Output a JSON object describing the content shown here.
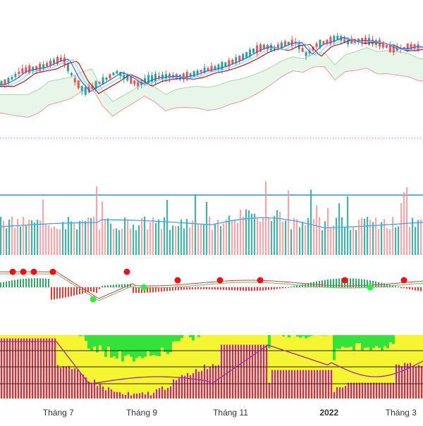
{
  "chart_data": [
    {
      "pane": "price",
      "type": "candlestick",
      "title": "",
      "overlays": [
        "ichimoku-cloud",
        "tenkan-line",
        "kijun-line",
        "moving-average"
      ],
      "candles_sampled": [
        {
          "o": 0.46,
          "c": 0.4,
          "h": 0.38,
          "l": 0.5
        },
        {
          "o": 0.4,
          "c": 0.36,
          "h": 0.34,
          "l": 0.42
        },
        {
          "o": 0.36,
          "c": 0.3,
          "h": 0.28,
          "l": 0.38
        },
        {
          "o": 0.3,
          "c": 0.26,
          "h": 0.24,
          "l": 0.33
        },
        {
          "o": 0.26,
          "c": 0.31,
          "h": 0.23,
          "l": 0.33
        },
        {
          "o": 0.31,
          "c": 0.27,
          "h": 0.25,
          "l": 0.34
        },
        {
          "o": 0.27,
          "c": 0.22,
          "h": 0.18,
          "l": 0.29
        },
        {
          "o": 0.22,
          "c": 0.45,
          "h": 0.2,
          "l": 0.47
        },
        {
          "o": 0.45,
          "c": 0.55,
          "h": 0.43,
          "l": 0.62
        },
        {
          "o": 0.55,
          "c": 0.48,
          "h": 0.44,
          "l": 0.57
        },
        {
          "o": 0.48,
          "c": 0.42,
          "h": 0.4,
          "l": 0.5
        },
        {
          "o": 0.42,
          "c": 0.33,
          "h": 0.28,
          "l": 0.44
        },
        {
          "o": 0.33,
          "c": 0.4,
          "h": 0.3,
          "l": 0.42
        },
        {
          "o": 0.4,
          "c": 0.46,
          "h": 0.38,
          "l": 0.52
        },
        {
          "o": 0.46,
          "c": 0.42,
          "h": 0.4,
          "l": 0.48
        },
        {
          "o": 0.42,
          "c": 0.41,
          "h": 0.39,
          "l": 0.44
        },
        {
          "o": 0.41,
          "c": 0.4,
          "h": 0.38,
          "l": 0.43
        },
        {
          "o": 0.4,
          "c": 0.42,
          "h": 0.38,
          "l": 0.44
        },
        {
          "o": 0.42,
          "c": 0.39,
          "h": 0.37,
          "l": 0.44
        },
        {
          "o": 0.39,
          "c": 0.35,
          "h": 0.34,
          "l": 0.41
        },
        {
          "o": 0.35,
          "c": 0.33,
          "h": 0.32,
          "l": 0.37
        },
        {
          "o": 0.33,
          "c": 0.3,
          "h": 0.29,
          "l": 0.35
        },
        {
          "o": 0.3,
          "c": 0.26,
          "h": 0.25,
          "l": 0.32
        },
        {
          "o": 0.26,
          "c": 0.22,
          "h": 0.2,
          "l": 0.28
        },
        {
          "o": 0.22,
          "c": 0.17,
          "h": 0.15,
          "l": 0.24
        },
        {
          "o": 0.17,
          "c": 0.15,
          "h": 0.13,
          "l": 0.19
        },
        {
          "o": 0.15,
          "c": 0.16,
          "h": 0.13,
          "l": 0.18
        },
        {
          "o": 0.16,
          "c": 0.12,
          "h": 0.1,
          "l": 0.18
        },
        {
          "o": 0.12,
          "c": 0.12,
          "h": 0.1,
          "l": 0.14
        },
        {
          "o": 0.12,
          "c": 0.3,
          "h": 0.1,
          "l": 0.32
        },
        {
          "o": 0.3,
          "c": 0.13,
          "h": 0.11,
          "l": 0.32
        },
        {
          "o": 0.13,
          "c": 0.1,
          "h": 0.08,
          "l": 0.15
        },
        {
          "o": 0.1,
          "c": 0.08,
          "h": 0.04,
          "l": 0.12
        },
        {
          "o": 0.08,
          "c": 0.13,
          "h": 0.06,
          "l": 0.15
        },
        {
          "o": 0.13,
          "c": 0.11,
          "h": 0.09,
          "l": 0.15
        },
        {
          "o": 0.11,
          "c": 0.12,
          "h": 0.09,
          "l": 0.14
        },
        {
          "o": 0.12,
          "c": 0.14,
          "h": 0.1,
          "l": 0.16
        },
        {
          "o": 0.14,
          "c": 0.22,
          "h": 0.12,
          "l": 0.24
        },
        {
          "o": 0.22,
          "c": 0.2,
          "h": 0.18,
          "l": 0.24
        },
        {
          "o": 0.2,
          "c": 0.18,
          "h": 0.16,
          "l": 0.22
        },
        {
          "o": 0.18,
          "c": 0.19,
          "h": 0.16,
          "l": 0.21
        }
      ],
      "price_axis_labels": []
    },
    {
      "pane": "volume",
      "type": "bar",
      "overlays": [
        "volume-moving-average"
      ],
      "x_labels": []
    },
    {
      "pane": "macd",
      "type": "histogram",
      "overlays": [
        "signal-line",
        "macd-line",
        "crossover-markers"
      ],
      "crossover_markers": [
        {
          "position": 0.03,
          "kind": "bearish"
        },
        {
          "position": 0.055,
          "kind": "bearish"
        },
        {
          "position": 0.08,
          "kind": "bearish"
        },
        {
          "position": 0.125,
          "kind": "bearish"
        },
        {
          "position": 0.22,
          "kind": "bullish"
        },
        {
          "position": 0.3,
          "kind": "bearish"
        },
        {
          "position": 0.34,
          "kind": "bullish"
        },
        {
          "position": 0.42,
          "kind": "bearish"
        },
        {
          "position": 0.52,
          "kind": "bearish"
        },
        {
          "position": 0.615,
          "kind": "bearish"
        },
        {
          "position": 0.815,
          "kind": "bearish"
        },
        {
          "position": 0.875,
          "kind": "bullish"
        },
        {
          "position": 0.955,
          "kind": "bearish"
        }
      ]
    },
    {
      "pane": "oscillator",
      "type": "stacked-bar",
      "overlays": [
        "oscillator-line"
      ],
      "colors": {
        "red": "#e12a2a",
        "yellow": "#f6f531",
        "green": "#35e23a"
      }
    }
  ],
  "x_axis": {
    "ticks": [
      {
        "label": "Tháng 7",
        "position": 0.138,
        "bold": false
      },
      {
        "label": "Tháng 9",
        "position": 0.335,
        "bold": false
      },
      {
        "label": "Tháng 11",
        "position": 0.545,
        "bold": false
      },
      {
        "label": "2022",
        "position": 0.778,
        "bold": true
      },
      {
        "label": "Tháng 3",
        "position": 0.948,
        "bold": false
      }
    ]
  },
  "colors": {
    "up": "#26a69a",
    "down": "#ef5350",
    "cloud": "#e8f5e9",
    "cloud_edge": "#ef9a9a",
    "tenkan": "#2962ff",
    "kijun": "#b71c1c",
    "ma": "#42a5f5",
    "divider": "#2196f3",
    "volume_up": "#26a69a",
    "volume_down": "#ef9a9a",
    "macd_pos": "#27ae60",
    "macd_neg": "#e53935",
    "signal": "#8e24aa"
  }
}
